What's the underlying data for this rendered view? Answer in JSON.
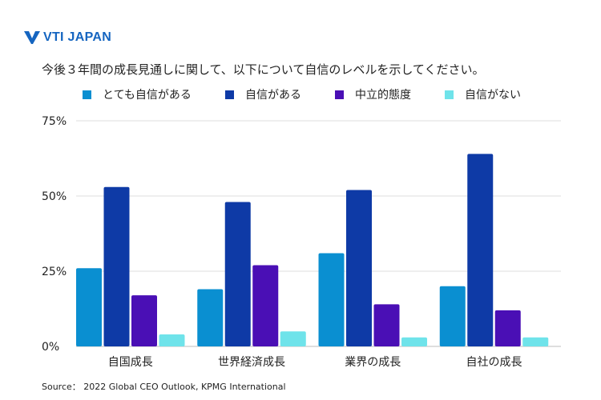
{
  "brand": {
    "name": "VTI JAPAN",
    "color": "#1565c0"
  },
  "source_text": "Source：  2022 Global CEO Outlook, KPMG International",
  "chart_data": {
    "type": "bar",
    "title": "今後３年間の成長見通しに関して、以下について自信のレベルを示してください。",
    "xlabel": "",
    "ylabel": "",
    "categories": [
      "自国成長",
      "世界経済成長",
      "業界の成長",
      "自社の成長"
    ],
    "yticks": [
      "0%",
      "25%",
      "50%",
      "75%"
    ],
    "ylim": [
      0,
      75
    ],
    "grid": true,
    "legend_position": "top",
    "series": [
      {
        "name": "とても自信がある",
        "color": "#0a8fd1",
        "values": [
          26,
          19,
          31,
          20
        ]
      },
      {
        "name": "自信がある",
        "color": "#0e3aa6",
        "values": [
          53,
          48,
          52,
          64
        ]
      },
      {
        "name": "中立的態度",
        "color": "#4a0fb5",
        "values": [
          17,
          27,
          14,
          12
        ]
      },
      {
        "name": "自信がない",
        "color": "#6fe3ea",
        "values": [
          4,
          5,
          3,
          3
        ]
      }
    ]
  }
}
